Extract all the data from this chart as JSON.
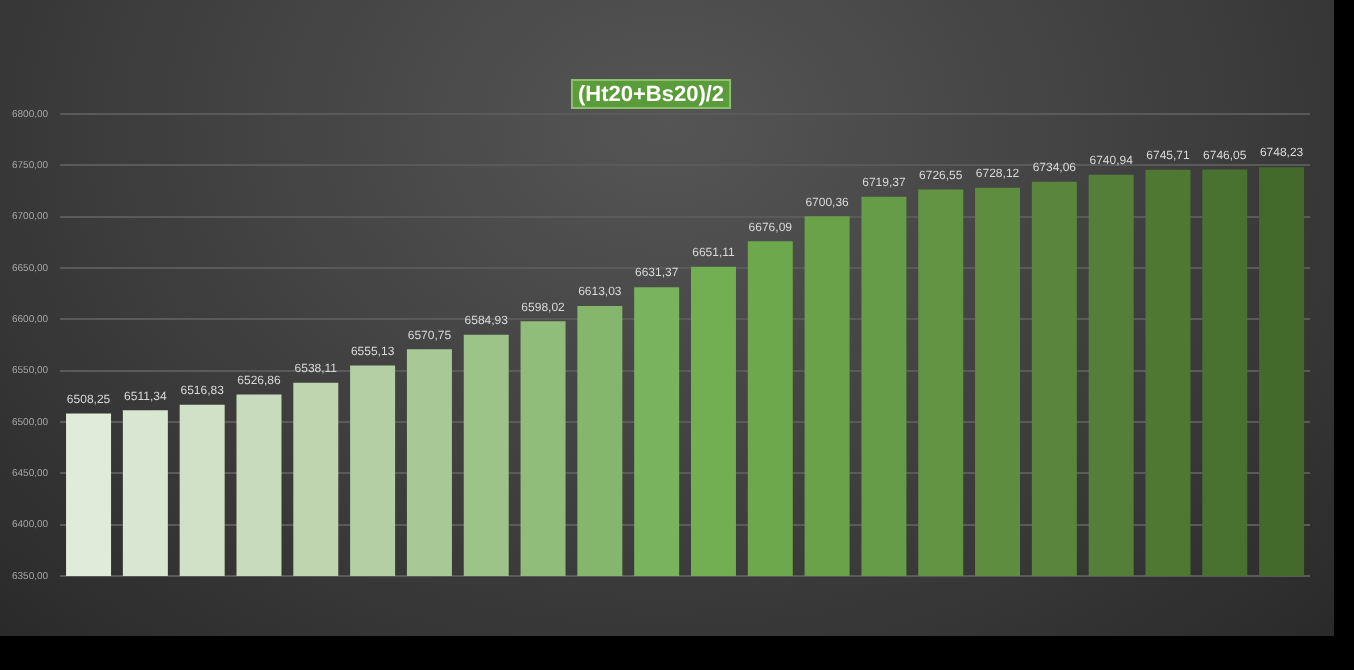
{
  "chart_data": {
    "type": "bar",
    "title": "(Ht20+Bs20)/2",
    "categories": [
      null,
      null,
      null,
      null,
      null,
      null,
      null,
      null,
      null,
      null,
      null,
      null,
      null,
      null,
      null,
      null,
      null,
      null,
      null,
      null,
      null,
      null
    ],
    "values": [
      6508.25,
      6511.34,
      6516.83,
      6526.86,
      6538.11,
      6555.13,
      6570.75,
      6584.93,
      6598.02,
      6613.03,
      6631.37,
      6651.11,
      6676.09,
      6700.36,
      6719.37,
      6726.55,
      6728.12,
      6734.06,
      6740.94,
      6745.71,
      6746.05,
      6748.23
    ],
    "value_labels": [
      "6508,25",
      "6511,34",
      "6516,83",
      "6526,86",
      "6538,11",
      "6555,13",
      "6570,75",
      "6584,93",
      "6598,02",
      "6613,03",
      "6631,37",
      "6651,11",
      "6676,09",
      "6700,36",
      "6719,37",
      "6726,55",
      "6728,12",
      "6734,06",
      "6740,94",
      "6745,71",
      "6746,05",
      "6748,23"
    ],
    "colors": [
      "#e0ebda",
      "#d9e6d1",
      "#d1e1c7",
      "#c8dbbc",
      "#bed5b0",
      "#b3cfa3",
      "#a8c996",
      "#9cc388",
      "#90bd7a",
      "#84b76b",
      "#7ab35e",
      "#72ae52",
      "#6ea84d",
      "#6aa24a",
      "#669b47",
      "#629444",
      "#5e8d40",
      "#59863c",
      "#547f38",
      "#4f7833",
      "#49712f",
      "#436a2a"
    ],
    "ylim": [
      6350,
      6800
    ],
    "yticks": [
      {
        "value": 6350,
        "label": "6350,00"
      },
      {
        "value": 6400,
        "label": "6400,00"
      },
      {
        "value": 6450,
        "label": "6450,00"
      },
      {
        "value": 6500,
        "label": "6500,00"
      },
      {
        "value": 6550,
        "label": "6550,00"
      },
      {
        "value": 6600,
        "label": "6600,00"
      },
      {
        "value": 6650,
        "label": "6650,00"
      },
      {
        "value": 6700,
        "label": "6700,00"
      },
      {
        "value": 6750,
        "label": "6750,00"
      },
      {
        "value": 6800,
        "label": "6800,00"
      }
    ],
    "grid": "y",
    "legend": false
  }
}
